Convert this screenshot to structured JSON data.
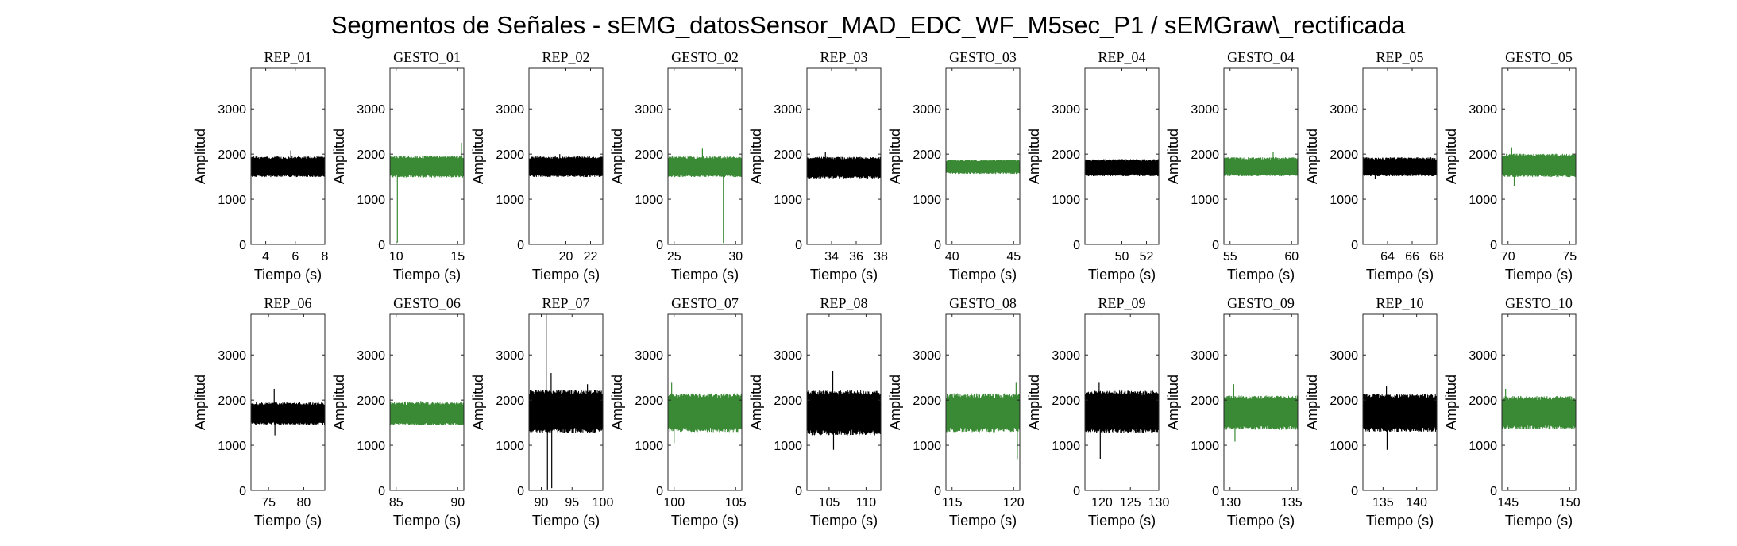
{
  "figure_title": "Segmentos de Señales - sEMG_datosSensor_MAD_EDC_WF_M5sec_P1 / sEMGraw\\_rectificada",
  "chart_data": {
    "type": "line",
    "xlabel": "Tiempo (s)",
    "ylabel": "Amplitud",
    "ylim": [
      0,
      3900
    ],
    "yticks": [
      0,
      1000,
      2000,
      3000
    ],
    "grid": false,
    "colors": {
      "REP": "#000000",
      "GESTO": "#3a8a35"
    },
    "layout": "2 rows x 10 columns",
    "panels": [
      {
        "title": "REP_01",
        "kind": "REP",
        "xlim": [
          3,
          8
        ],
        "xticks": [
          4,
          6,
          8
        ],
        "center": 1720,
        "half": 230,
        "spikes": [
          [
            5.7,
            2080
          ]
        ]
      },
      {
        "title": "GESTO_01",
        "kind": "GESTO",
        "xlim": [
          9.5,
          15.5
        ],
        "xticks": [
          10,
          15
        ],
        "center": 1720,
        "half": 240,
        "spikes": [
          [
            10.1,
            40
          ],
          [
            15.3,
            2250
          ]
        ]
      },
      {
        "title": "REP_02",
        "kind": "REP",
        "xlim": [
          17,
          23
        ],
        "xticks": [
          20,
          22
        ],
        "center": 1720,
        "half": 230,
        "spikes": [
          [
            19.5,
            2000
          ]
        ]
      },
      {
        "title": "GESTO_02",
        "kind": "GESTO",
        "xlim": [
          24.5,
          30.5
        ],
        "xticks": [
          25,
          30
        ],
        "center": 1720,
        "half": 230,
        "spikes": [
          [
            27.3,
            2120
          ],
          [
            29,
            30
          ]
        ]
      },
      {
        "title": "REP_03",
        "kind": "REP",
        "xlim": [
          32,
          38
        ],
        "xticks": [
          34,
          36,
          38
        ],
        "center": 1700,
        "half": 240,
        "spikes": [
          [
            33.5,
            2040
          ]
        ]
      },
      {
        "title": "GESTO_03",
        "kind": "GESTO",
        "xlim": [
          39.5,
          45.5
        ],
        "xticks": [
          40,
          45
        ],
        "center": 1720,
        "half": 160,
        "spikes": []
      },
      {
        "title": "REP_04",
        "kind": "REP",
        "xlim": [
          47,
          53
        ],
        "xticks": [
          50,
          52
        ],
        "center": 1700,
        "half": 190,
        "spikes": []
      },
      {
        "title": "GESTO_04",
        "kind": "GESTO",
        "xlim": [
          54.5,
          60.5
        ],
        "xticks": [
          55,
          60
        ],
        "center": 1720,
        "half": 210,
        "spikes": [
          [
            58.5,
            2050
          ]
        ]
      },
      {
        "title": "REP_05",
        "kind": "REP",
        "xlim": [
          62,
          68
        ],
        "xticks": [
          64,
          66,
          68
        ],
        "center": 1720,
        "half": 210,
        "spikes": [
          [
            63,
            1450
          ]
        ]
      },
      {
        "title": "GESTO_05",
        "kind": "GESTO",
        "xlim": [
          69.5,
          75.5
        ],
        "xticks": [
          70,
          75
        ],
        "center": 1750,
        "half": 260,
        "spikes": [
          [
            70.3,
            2150
          ],
          [
            70.5,
            1300
          ]
        ]
      },
      {
        "title": "REP_06",
        "kind": "REP",
        "xlim": [
          72.5,
          83
        ],
        "xticks": [
          75,
          80
        ],
        "center": 1700,
        "half": 250,
        "spikes": [
          [
            75.8,
            2250
          ],
          [
            75.9,
            1220
          ]
        ]
      },
      {
        "title": "GESTO_06",
        "kind": "GESTO",
        "xlim": [
          84.5,
          90.5
        ],
        "xticks": [
          85,
          90
        ],
        "center": 1700,
        "half": 260,
        "spikes": [
          [
            87,
            1980
          ]
        ]
      },
      {
        "title": "REP_07",
        "kind": "REP",
        "xlim": [
          88,
          100
        ],
        "xticks": [
          90,
          95,
          100
        ],
        "center": 1750,
        "half": 480,
        "spikes": [
          [
            90.8,
            3900
          ],
          [
            91,
            20
          ],
          [
            91.6,
            2600
          ],
          [
            91.7,
            50
          ],
          [
            97.5,
            2350
          ]
        ]
      },
      {
        "title": "GESTO_07",
        "kind": "GESTO",
        "xlim": [
          99.5,
          105.5
        ],
        "xticks": [
          100,
          105
        ],
        "center": 1720,
        "half": 430,
        "spikes": [
          [
            99.8,
            2400
          ],
          [
            100,
            1050
          ]
        ]
      },
      {
        "title": "REP_08",
        "kind": "REP",
        "xlim": [
          102,
          112
        ],
        "xticks": [
          105,
          110
        ],
        "center": 1720,
        "half": 500,
        "spikes": [
          [
            105.5,
            2650
          ],
          [
            105.6,
            900
          ]
        ]
      },
      {
        "title": "GESTO_08",
        "kind": "GESTO",
        "xlim": [
          114.5,
          120.5
        ],
        "xticks": [
          115,
          120
        ],
        "center": 1720,
        "half": 430,
        "spikes": [
          [
            120.2,
            2400
          ],
          [
            120.3,
            680
          ]
        ]
      },
      {
        "title": "REP_09",
        "kind": "REP",
        "xlim": [
          117,
          130
        ],
        "xticks": [
          120,
          125,
          130
        ],
        "center": 1740,
        "half": 470,
        "spikes": [
          [
            119.5,
            2400
          ],
          [
            119.7,
            700
          ]
        ]
      },
      {
        "title": "GESTO_09",
        "kind": "GESTO",
        "xlim": [
          129.5,
          135.5
        ],
        "xticks": [
          130,
          135
        ],
        "center": 1720,
        "half": 380,
        "spikes": [
          [
            130.3,
            2350
          ],
          [
            130.4,
            1080
          ]
        ]
      },
      {
        "title": "REP_10",
        "kind": "REP",
        "xlim": [
          132,
          143
        ],
        "xticks": [
          135,
          140
        ],
        "center": 1720,
        "half": 420,
        "spikes": [
          [
            135.5,
            2300
          ],
          [
            135.6,
            900
          ]
        ]
      },
      {
        "title": "GESTO_10",
        "kind": "GESTO",
        "xlim": [
          144.5,
          150.5
        ],
        "xticks": [
          145,
          150
        ],
        "center": 1720,
        "half": 370,
        "spikes": [
          [
            144.8,
            2250
          ]
        ]
      }
    ]
  }
}
